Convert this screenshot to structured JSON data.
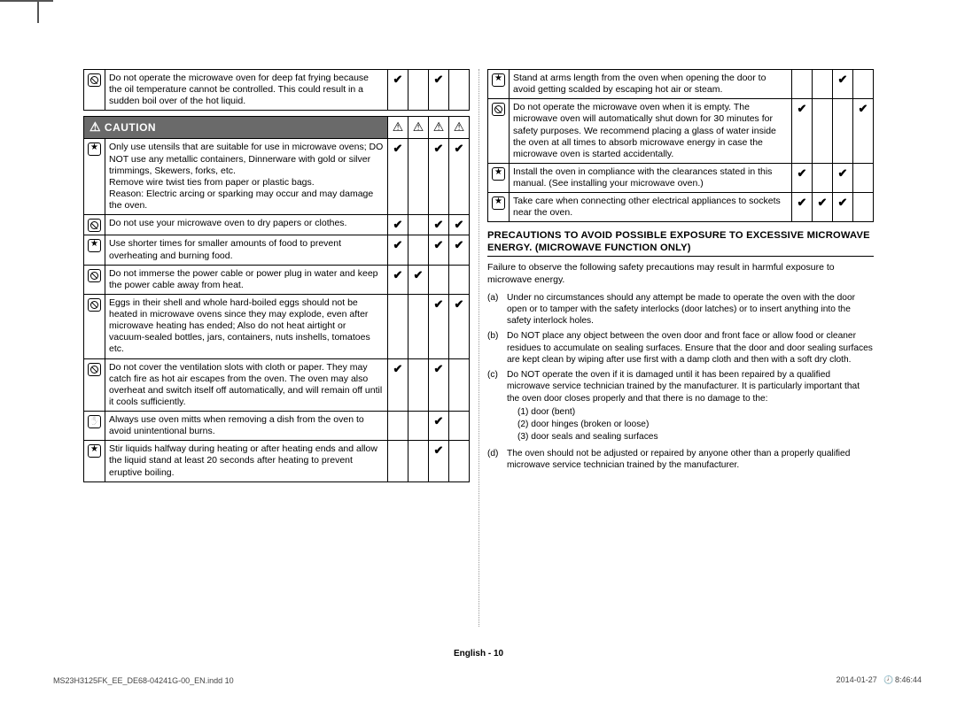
{
  "caution_label": "CAUTION",
  "hazard_glyph": "⚠",
  "check": "✔",
  "left_top_rows": [
    {
      "icon": "slash",
      "text": "Do not operate the microwave oven for deep fat frying because the oil temperature cannot be controlled. This could result in a sudden boil over of the hot liquid.",
      "checks": [
        true,
        false,
        true,
        false
      ]
    }
  ],
  "left_rows": [
    {
      "icon": "star",
      "text": "Only use utensils that are suitable for use in microwave ovens; DO NOT use any metallic containers, Dinnerware with gold or silver trimmings, Skewers, forks, etc.\nRemove wire twist ties from paper or plastic bags.\nReason: Electric arcing or sparking may occur and may damage the oven.",
      "checks": [
        true,
        false,
        true,
        true
      ]
    },
    {
      "icon": "slash",
      "text": "Do not use your microwave oven to dry papers or clothes.",
      "checks": [
        true,
        false,
        true,
        true
      ]
    },
    {
      "icon": "star",
      "text": "Use shorter times for smaller amounts of food to prevent overheating and burning food.",
      "checks": [
        true,
        false,
        true,
        true
      ]
    },
    {
      "icon": "slash",
      "text": "Do not immerse the power cable or power plug in water and keep the power cable away from heat.",
      "checks": [
        true,
        true,
        false,
        false
      ]
    },
    {
      "icon": "slash",
      "text": "Eggs in their shell and whole hard-boiled eggs should not be heated in microwave ovens since they may explode, even after microwave heating has ended; Also do not heat airtight or vacuum-sealed bottles, jars, containers, nuts inshells, tomatoes etc.",
      "checks": [
        false,
        false,
        true,
        true
      ]
    },
    {
      "icon": "slash",
      "text": "Do not cover the ventilation slots with cloth or paper. They may catch fire as hot air escapes from the oven. The oven may also overheat and switch itself off automatically, and will remain off until it cools sufficiently.",
      "checks": [
        true,
        false,
        true,
        false
      ]
    },
    {
      "icon": "hand",
      "text": "Always use oven mitts when removing a dish from the oven to avoid unintentional burns.",
      "checks": [
        false,
        false,
        true,
        false
      ]
    },
    {
      "icon": "star",
      "text": "Stir liquids halfway during heating or after heating ends and allow the liquid stand at least 20 seconds after heating to prevent eruptive boiling.",
      "checks": [
        false,
        false,
        true,
        false
      ]
    }
  ],
  "right_rows": [
    {
      "icon": "star",
      "text": "Stand at arms length from the oven when opening the door to avoid getting scalded by escaping hot air or steam.",
      "checks": [
        false,
        false,
        true,
        false
      ]
    },
    {
      "icon": "slash",
      "text": "Do not operate the microwave oven when it is empty. The microwave oven will automatically shut down for 30 minutes for safety purposes. We recommend placing a glass of water inside the oven at all times to absorb microwave energy in case the microwave oven is started accidentally.",
      "checks": [
        true,
        false,
        false,
        true
      ]
    },
    {
      "icon": "star",
      "text": "Install the oven in compliance with the clearances stated in this manual. (See installing your microwave oven.)",
      "checks": [
        true,
        false,
        true,
        false
      ]
    },
    {
      "icon": "star",
      "text": "Take care when connecting other electrical appliances to sockets near the oven.",
      "checks": [
        true,
        true,
        true,
        false
      ]
    }
  ],
  "section_title": "PRECAUTIONS TO AVOID POSSIBLE EXPOSURE TO EXCESSIVE MICROWAVE ENERGY. (MICROWAVE FUNCTION ONLY)",
  "section_intro": "Failure to observe the following safety precautions may result in harmful exposure to microwave energy.",
  "precautions": [
    {
      "label": "(a)",
      "text": "Under no circumstances should any attempt be made to operate the oven with the door open or to tamper with the safety interlocks (door latches) or to insert anything into the safety interlock holes."
    },
    {
      "label": "(b)",
      "text": "Do NOT place any object between the oven door and front face or allow food or cleaner residues to accumulate on sealing surfaces. Ensure that the door and door sealing surfaces are kept clean by wiping after use first with a damp cloth and then with a soft dry cloth."
    },
    {
      "label": "(c)",
      "text": "Do NOT operate the oven if it is damaged until it has been repaired by a qualified microwave service technician trained by the manufacturer. It is particularly important that the oven door closes properly and that there is no damage to the:",
      "sub": [
        "(1)  door (bent)",
        "(2)  door hinges (broken or loose)",
        "(3)  door seals and sealing surfaces"
      ]
    },
    {
      "label": "(d)",
      "text": "The oven should not be adjusted or repaired by anyone other than a properly qualified microwave service technician trained by the manufacturer."
    }
  ],
  "footer_center": "English - 10",
  "footer_left": "MS23H3125FK_EE_DE68-04241G-00_EN.indd   10",
  "footer_right_date": "2014-01-27",
  "footer_right_time": "8:46:44"
}
